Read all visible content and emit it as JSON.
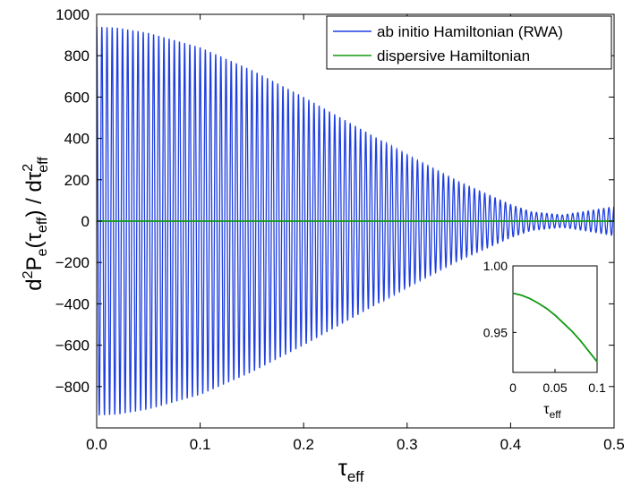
{
  "chart_data": [
    {
      "type": "line",
      "title": "",
      "xlabel": {
        "base": "τ",
        "sub": "eff"
      },
      "ylabel": {
        "parts": [
          "d",
          "2",
          "P",
          "e",
          "(τ",
          "eff",
          ") / dτ",
          "2",
          "eff"
        ]
      },
      "xlim": [
        0,
        0.5
      ],
      "ylim": [
        -1000,
        1000
      ],
      "xticks": [
        "0.0",
        "0.1",
        "0.2",
        "0.3",
        "0.4",
        "0.5"
      ],
      "yticks": [
        "−800",
        "−600",
        "−400",
        "−200",
        "0",
        "200",
        "400",
        "600",
        "800",
        "1000"
      ],
      "xtick_values": [
        0,
        0.1,
        0.2,
        0.3,
        0.4,
        0.5
      ],
      "ytick_values": [
        -800,
        -600,
        -400,
        -200,
        0,
        200,
        400,
        600,
        800,
        1000
      ],
      "grid": false,
      "legend_position": "top-right",
      "series": [
        {
          "name": "ab initio Hamiltonian (RWA)",
          "color": "#1f3fe0",
          "description_values": {
            "oscillation_cycles": 100,
            "envelope_x": [
              0.0,
              0.02,
              0.05,
              0.1,
              0.15,
              0.2,
              0.25,
              0.3,
              0.35,
              0.4,
              0.42,
              0.45,
              0.47,
              0.5
            ],
            "envelope_y": [
              940,
              935,
              910,
              840,
              730,
              600,
              460,
              320,
              190,
              80,
              45,
              30,
              45,
              70
            ]
          }
        },
        {
          "name": "dispersive Hamiltonian",
          "color": "#119911",
          "x": [
            0,
            0.5
          ],
          "y": [
            0,
            0
          ]
        }
      ]
    },
    {
      "type": "line",
      "title": "",
      "xlabel": {
        "base": "τ",
        "sub": "eff"
      },
      "ylabel": "",
      "xlim": [
        0,
        0.1
      ],
      "ylim": [
        0.92,
        1.0
      ],
      "xticks": [
        "0",
        "0.05",
        "0.1"
      ],
      "yticks": [
        "0.95",
        "1.00"
      ],
      "xtick_values": [
        0,
        0.05,
        0.1
      ],
      "ytick_values": [
        0.95,
        1.0
      ],
      "series": [
        {
          "color": "#119911",
          "x": [
            0,
            0.01,
            0.02,
            0.03,
            0.04,
            0.05,
            0.06,
            0.07,
            0.08,
            0.09,
            0.1
          ],
          "y": [
            0.9795,
            0.978,
            0.9755,
            0.972,
            0.968,
            0.963,
            0.957,
            0.951,
            0.944,
            0.936,
            0.928
          ]
        }
      ]
    }
  ]
}
